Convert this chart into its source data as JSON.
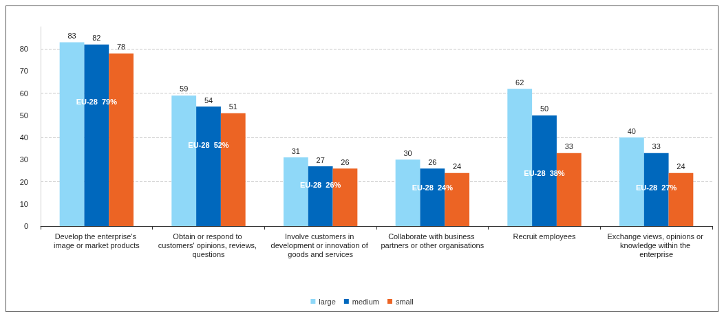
{
  "chart_data": {
    "type": "bar",
    "categories": [
      "Develop the enterprise's image or market products",
      "Obtain or respond to customers' opinions, reviews, questions",
      "Involve customers in development or innovation of goods and services",
      "Collaborate with business partners or other organisations",
      "Recruit employees",
      "Exchange views, opinions or knowledge within the enterprise"
    ],
    "series": [
      {
        "name": "large",
        "color": "#8fd8f8",
        "values": [
          83,
          59,
          31,
          30,
          62,
          40
        ]
      },
      {
        "name": "medium",
        "color": "#0068bd",
        "values": [
          82,
          54,
          27,
          26,
          50,
          33
        ]
      },
      {
        "name": "small",
        "color": "#ec6424",
        "values": [
          78,
          51,
          26,
          24,
          33,
          24
        ]
      }
    ],
    "ylim": [
      0,
      90
    ],
    "yticks": [
      0,
      10,
      20,
      30,
      40,
      50,
      60,
      70,
      80
    ],
    "grid": "y",
    "legend": "bottom",
    "data_labels": true,
    "annotations": [
      "EU-28  79%",
      "EU-28  52%",
      "EU-28  26%",
      "EU-28  24%",
      "EU-28  38%",
      "EU-28  27%"
    ]
  }
}
